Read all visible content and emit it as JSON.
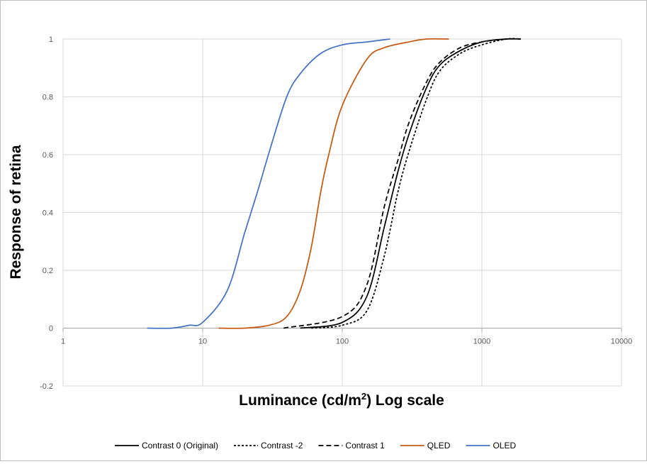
{
  "chart_data": {
    "type": "line",
    "title": "",
    "xlabel": {
      "prefix": "Luminance (cd/m",
      "superscript": "2",
      "suffix": ") Log scale"
    },
    "ylabel": "Response of retina",
    "x_scale": "log",
    "xlim": [
      1,
      10000
    ],
    "ylim": [
      -0.2,
      1
    ],
    "x_ticks": [
      1,
      10,
      100,
      1000,
      10000
    ],
    "x_tick_labels": [
      "1",
      "10",
      "100",
      "1000",
      "10000"
    ],
    "y_ticks": [
      -0.2,
      0,
      0.2,
      0.4,
      0.6,
      0.8,
      1
    ],
    "y_tick_labels": [
      "-0.2",
      "0",
      "0.2",
      "0.4",
      "0.6",
      "0.8",
      "1"
    ],
    "grid": true,
    "legend_position": "bottom",
    "series": [
      {
        "name": "Contrast 0 (Original)",
        "color": "#000000",
        "dash": "solid",
        "x": [
          50,
          100,
          150,
          200,
          250,
          300,
          400,
          500,
          700,
          1000,
          1500,
          1900
        ],
        "y": [
          0.0,
          0.02,
          0.11,
          0.35,
          0.54,
          0.67,
          0.83,
          0.91,
          0.96,
          0.99,
          1.0,
          1.0
        ]
      },
      {
        "name": "Contrast -2",
        "color": "#000000",
        "dash": "short",
        "x": [
          60,
          100,
          150,
          200,
          250,
          300,
          400,
          500,
          700,
          1000,
          1500,
          1900
        ],
        "y": [
          0.0,
          0.01,
          0.06,
          0.25,
          0.47,
          0.61,
          0.79,
          0.89,
          0.95,
          0.98,
          1.0,
          1.0
        ]
      },
      {
        "name": "Contrast 1",
        "color": "#000000",
        "dash": "long",
        "x": [
          38,
          100,
          150,
          200,
          250,
          300,
          400,
          500,
          700,
          1000,
          1500,
          1900
        ],
        "y": [
          0.0,
          0.04,
          0.15,
          0.42,
          0.58,
          0.71,
          0.85,
          0.92,
          0.97,
          0.99,
          1.0,
          1.0
        ]
      },
      {
        "name": "QLED",
        "color": "#c55a11",
        "dash": "solid",
        "x": [
          13,
          20,
          30,
          40,
          50,
          60,
          70,
          80,
          100,
          150,
          200,
          300,
          400,
          580
        ],
        "y": [
          0.0,
          0.0,
          0.01,
          0.04,
          0.13,
          0.28,
          0.47,
          0.6,
          0.77,
          0.93,
          0.97,
          0.99,
          1.0,
          1.0
        ]
      },
      {
        "name": "OLED",
        "color": "#4472c4",
        "dash": "solid",
        "x": [
          4,
          6,
          8,
          10,
          15,
          20,
          25,
          30,
          40,
          50,
          70,
          100,
          150,
          220
        ],
        "y": [
          0.0,
          0.0,
          0.01,
          0.02,
          0.13,
          0.33,
          0.48,
          0.61,
          0.8,
          0.88,
          0.95,
          0.98,
          0.99,
          1.0
        ]
      }
    ]
  }
}
